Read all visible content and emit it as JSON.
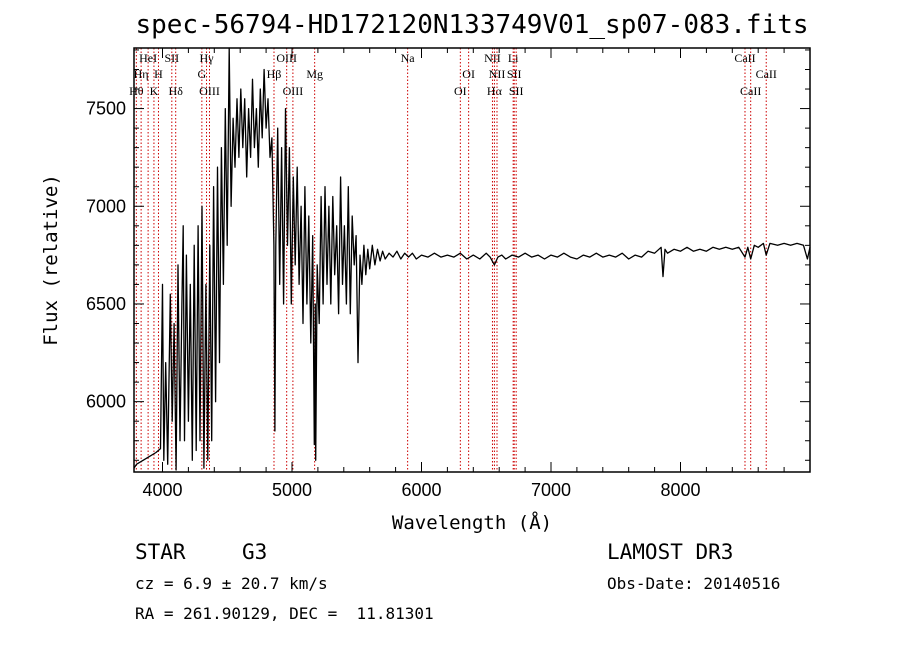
{
  "chart_data": {
    "type": "line",
    "title": "spec-56794-HD172120N133749V01_sp07-083.fits",
    "xlabel": "Wavelength (Å)",
    "ylabel": "Flux (relative)",
    "xlim": [
      3780,
      9000
    ],
    "ylim": [
      5640,
      7810
    ],
    "xticks": [
      4000,
      5000,
      6000,
      7000,
      8000
    ],
    "yticks": [
      6000,
      6500,
      7000,
      7500
    ],
    "grid": false,
    "line_color": "#000000",
    "marker_color": "#cc0000",
    "series": [
      {
        "points": [
          [
            3780,
            5660
          ],
          [
            3800,
            5680
          ],
          [
            3850,
            5700
          ],
          [
            3900,
            5720
          ],
          [
            3950,
            5740
          ],
          [
            3985,
            5760
          ],
          [
            4000,
            6600
          ],
          [
            4010,
            5700
          ],
          [
            4025,
            6200
          ],
          [
            4040,
            5680
          ],
          [
            4060,
            6550
          ],
          [
            4075,
            5900
          ],
          [
            4090,
            6400
          ],
          [
            4105,
            5650
          ],
          [
            4120,
            6700
          ],
          [
            4135,
            5800
          ],
          [
            4150,
            6500
          ],
          [
            4160,
            6900
          ],
          [
            4170,
            5800
          ],
          [
            4185,
            6750
          ],
          [
            4200,
            5900
          ],
          [
            4215,
            6600
          ],
          [
            4230,
            5700
          ],
          [
            4245,
            6800
          ],
          [
            4260,
            5750
          ],
          [
            4275,
            6900
          ],
          [
            4290,
            5800
          ],
          [
            4305,
            7000
          ],
          [
            4320,
            5660
          ],
          [
            4335,
            6600
          ],
          [
            4350,
            5700
          ],
          [
            4365,
            6800
          ],
          [
            4380,
            5800
          ],
          [
            4395,
            7100
          ],
          [
            4410,
            6000
          ],
          [
            4425,
            7200
          ],
          [
            4440,
            6200
          ],
          [
            4455,
            7300
          ],
          [
            4470,
            6600
          ],
          [
            4485,
            7500
          ],
          [
            4500,
            6800
          ],
          [
            4515,
            7810
          ],
          [
            4530,
            7000
          ],
          [
            4545,
            7450
          ],
          [
            4560,
            7200
          ],
          [
            4575,
            7550
          ],
          [
            4590,
            7250
          ],
          [
            4605,
            7600
          ],
          [
            4620,
            7300
          ],
          [
            4635,
            7550
          ],
          [
            4650,
            7150
          ],
          [
            4665,
            7500
          ],
          [
            4680,
            7250
          ],
          [
            4695,
            7650
          ],
          [
            4710,
            7300
          ],
          [
            4725,
            7500
          ],
          [
            4740,
            7200
          ],
          [
            4755,
            7600
          ],
          [
            4770,
            7350
          ],
          [
            4785,
            7700
          ],
          [
            4800,
            7400
          ],
          [
            4815,
            7550
          ],
          [
            4830,
            7250
          ],
          [
            4845,
            7350
          ],
          [
            4860,
            6800
          ],
          [
            4868,
            5850
          ],
          [
            4875,
            6800
          ],
          [
            4890,
            7400
          ],
          [
            4905,
            6600
          ],
          [
            4920,
            7300
          ],
          [
            4935,
            6500
          ],
          [
            4950,
            7500
          ],
          [
            4965,
            6800
          ],
          [
            4980,
            7300
          ],
          [
            4995,
            6500
          ],
          [
            5010,
            7150
          ],
          [
            5025,
            6700
          ],
          [
            5040,
            7200
          ],
          [
            5055,
            6600
          ],
          [
            5070,
            7000
          ],
          [
            5085,
            6400
          ],
          [
            5100,
            7100
          ],
          [
            5115,
            6500
          ],
          [
            5130,
            6950
          ],
          [
            5145,
            6300
          ],
          [
            5160,
            6850
          ],
          [
            5172,
            5780
          ],
          [
            5180,
            6500
          ],
          [
            5183,
            5700
          ],
          [
            5195,
            6700
          ],
          [
            5210,
            6400
          ],
          [
            5225,
            7050
          ],
          [
            5240,
            6500
          ],
          [
            5255,
            7100
          ],
          [
            5270,
            6600
          ],
          [
            5285,
            7000
          ],
          [
            5300,
            6500
          ],
          [
            5315,
            7050
          ],
          [
            5330,
            6650
          ],
          [
            5345,
            6900
          ],
          [
            5360,
            6450
          ],
          [
            5375,
            7150
          ],
          [
            5390,
            6600
          ],
          [
            5405,
            6900
          ],
          [
            5420,
            6500
          ],
          [
            5435,
            7100
          ],
          [
            5450,
            6450
          ],
          [
            5465,
            6950
          ],
          [
            5480,
            6700
          ],
          [
            5495,
            6850
          ],
          [
            5510,
            6200
          ],
          [
            5525,
            6750
          ],
          [
            5540,
            6600
          ],
          [
            5555,
            6800
          ],
          [
            5570,
            6650
          ],
          [
            5585,
            6780
          ],
          [
            5600,
            6680
          ],
          [
            5620,
            6800
          ],
          [
            5640,
            6700
          ],
          [
            5660,
            6780
          ],
          [
            5680,
            6720
          ],
          [
            5700,
            6770
          ],
          [
            5720,
            6730
          ],
          [
            5750,
            6760
          ],
          [
            5780,
            6740
          ],
          [
            5810,
            6770
          ],
          [
            5840,
            6730
          ],
          [
            5870,
            6760
          ],
          [
            5900,
            6740
          ],
          [
            5930,
            6760
          ],
          [
            5960,
            6730
          ],
          [
            6000,
            6750
          ],
          [
            6050,
            6740
          ],
          [
            6100,
            6760
          ],
          [
            6150,
            6740
          ],
          [
            6200,
            6750
          ],
          [
            6250,
            6740
          ],
          [
            6300,
            6760
          ],
          [
            6350,
            6730
          ],
          [
            6400,
            6750
          ],
          [
            6450,
            6730
          ],
          [
            6500,
            6760
          ],
          [
            6530,
            6740
          ],
          [
            6563,
            6700
          ],
          [
            6590,
            6740
          ],
          [
            6620,
            6750
          ],
          [
            6650,
            6730
          ],
          [
            6700,
            6750
          ],
          [
            6750,
            6740
          ],
          [
            6800,
            6760
          ],
          [
            6850,
            6740
          ],
          [
            6900,
            6750
          ],
          [
            6950,
            6730
          ],
          [
            7000,
            6750
          ],
          [
            7050,
            6740
          ],
          [
            7100,
            6760
          ],
          [
            7150,
            6740
          ],
          [
            7200,
            6730
          ],
          [
            7250,
            6750
          ],
          [
            7300,
            6740
          ],
          [
            7350,
            6760
          ],
          [
            7400,
            6740
          ],
          [
            7450,
            6750
          ],
          [
            7500,
            6740
          ],
          [
            7550,
            6760
          ],
          [
            7600,
            6730
          ],
          [
            7650,
            6750
          ],
          [
            7700,
            6740
          ],
          [
            7750,
            6770
          ],
          [
            7800,
            6760
          ],
          [
            7850,
            6790
          ],
          [
            7865,
            6640
          ],
          [
            7880,
            6780
          ],
          [
            7900,
            6760
          ],
          [
            7950,
            6780
          ],
          [
            8000,
            6770
          ],
          [
            8050,
            6790
          ],
          [
            8100,
            6770
          ],
          [
            8150,
            6780
          ],
          [
            8200,
            6770
          ],
          [
            8250,
            6790
          ],
          [
            8300,
            6780
          ],
          [
            8350,
            6790
          ],
          [
            8400,
            6780
          ],
          [
            8450,
            6790
          ],
          [
            8498,
            6740
          ],
          [
            8520,
            6790
          ],
          [
            8542,
            6730
          ],
          [
            8570,
            6800
          ],
          [
            8600,
            6790
          ],
          [
            8640,
            6810
          ],
          [
            8662,
            6750
          ],
          [
            8690,
            6810
          ],
          [
            8750,
            6800
          ],
          [
            8800,
            6810
          ],
          [
            8850,
            6800
          ],
          [
            8900,
            6810
          ],
          [
            8950,
            6800
          ],
          [
            8980,
            6730
          ],
          [
            9000,
            6790
          ]
        ]
      }
    ],
    "lines": [
      {
        "x": 3798,
        "labels": [
          {
            "text": "Hθ",
            "row": 3
          }
        ]
      },
      {
        "x": 3835,
        "labels": [
          {
            "text": "Hη",
            "row": 2
          }
        ]
      },
      {
        "x": 3889,
        "labels": [
          {
            "text": "HeI",
            "row": 1
          }
        ]
      },
      {
        "x": 3934,
        "labels": [
          {
            "text": "K",
            "row": 3
          }
        ]
      },
      {
        "x": 3969,
        "labels": [
          {
            "text": "H",
            "row": 2
          }
        ]
      },
      {
        "x": 4072,
        "labels": [
          {
            "text": "SII",
            "row": 1
          }
        ]
      },
      {
        "x": 4102,
        "labels": [
          {
            "text": "Hδ",
            "row": 3
          }
        ]
      },
      {
        "x": 4304,
        "labels": [
          {
            "text": "G",
            "row": 2
          }
        ]
      },
      {
        "x": 4340,
        "labels": [
          {
            "text": "Hγ",
            "row": 1
          }
        ]
      },
      {
        "x": 4363,
        "labels": [
          {
            "text": "OIII",
            "row": 3
          }
        ]
      },
      {
        "x": 4861,
        "labels": [
          {
            "text": "Hβ",
            "row": 2
          }
        ]
      },
      {
        "x": 4959,
        "labels": [
          {
            "text": "OIII",
            "row": 1
          }
        ]
      },
      {
        "x": 5007,
        "labels": [
          {
            "text": "OIII",
            "row": 3
          }
        ]
      },
      {
        "x": 5175,
        "labels": [
          {
            "text": "Mg",
            "row": 2
          }
        ]
      },
      {
        "x": 5893,
        "labels": [
          {
            "text": "Na",
            "row": 1
          }
        ]
      },
      {
        "x": 6300,
        "labels": [
          {
            "text": "OI",
            "row": 3
          }
        ]
      },
      {
        "x": 6364,
        "labels": [
          {
            "text": "OI",
            "row": 2
          }
        ]
      },
      {
        "x": 6548,
        "labels": [
          {
            "text": "NII",
            "row": 1
          }
        ]
      },
      {
        "x": 6563,
        "labels": [
          {
            "text": "Hα",
            "row": 3
          }
        ]
      },
      {
        "x": 6583,
        "labels": [
          {
            "text": "NII",
            "row": 2
          }
        ]
      },
      {
        "x": 6708,
        "labels": [
          {
            "text": "Li",
            "row": 1
          }
        ]
      },
      {
        "x": 6716,
        "labels": [
          {
            "text": "SII",
            "row": 2
          }
        ]
      },
      {
        "x": 6731,
        "labels": [
          {
            "text": "SII",
            "row": 3
          }
        ]
      },
      {
        "x": 8498,
        "labels": [
          {
            "text": "CaII",
            "row": 1
          }
        ]
      },
      {
        "x": 8542,
        "labels": [
          {
            "text": "CaII",
            "row": 3
          }
        ]
      },
      {
        "x": 8662,
        "labels": [
          {
            "text": "CaII",
            "row": 2
          }
        ]
      }
    ]
  },
  "info": {
    "class_label": "STAR",
    "subclass": "G3",
    "survey": "LAMOST DR3",
    "cz_line": "cz = 6.9 ± 20.7 km/s",
    "obs_date_line": "Obs-Date: 20140516",
    "coords_line": "RA = 261.90129, DEC =  11.81301"
  }
}
